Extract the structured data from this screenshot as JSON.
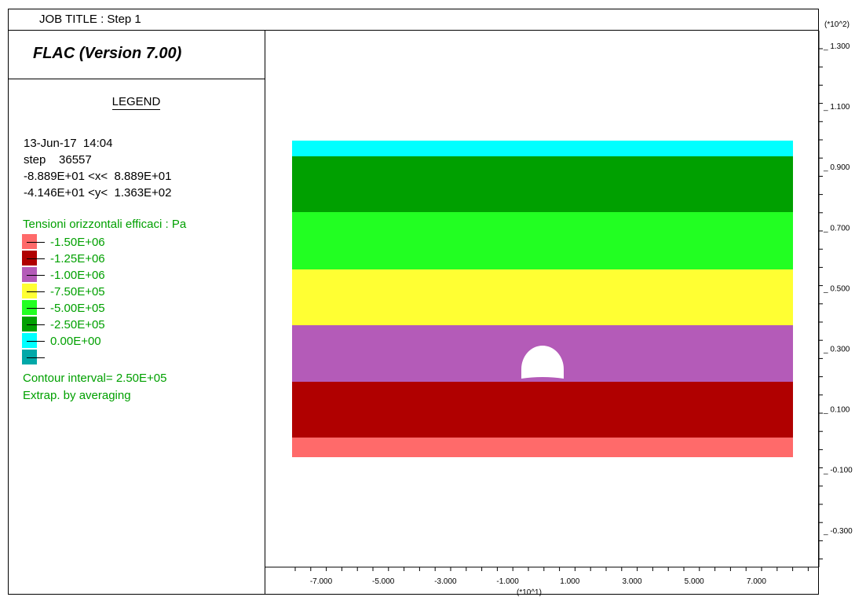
{
  "header": {
    "job_title": "JOB TITLE : Step 1",
    "version": "FLAC (Version 7.00)"
  },
  "legend": {
    "title": "LEGEND",
    "date": "13-Jun-17  14:04",
    "step": "step    36557",
    "x_range": "-8.889E+01 <x<  8.889E+01",
    "y_range": "-4.146E+01 <y<  1.363E+02",
    "contour_title": "Tensioni orizzontali efficaci : Pa",
    "contour_levels": [
      {
        "label": "-1.50E+06",
        "color": "#ff6a6a"
      },
      {
        "label": "-1.25E+06",
        "color": "#b00000"
      },
      {
        "label": "-1.00E+06",
        "color": "#b45bb8"
      },
      {
        "label": "-7.50E+05",
        "color": "#ffff33"
      },
      {
        "label": "-5.00E+05",
        "color": "#22ff22"
      },
      {
        "label": "-2.50E+05",
        "color": "#00a000"
      },
      {
        "label": "0.00E+00",
        "color": "#00ffff"
      },
      {
        "label": "",
        "color": "#00a8a8"
      }
    ],
    "contour_interval": "Contour interval=  2.50E+05",
    "extrapolation": "Extrap. by averaging"
  },
  "plot": {
    "y_multiplier": "(*10^2)",
    "x_multiplier": "(*10^1)",
    "y_ticks": [
      "1.300",
      "1.100",
      "0.900",
      "0.700",
      "0.500",
      "0.300",
      "0.100",
      "-0.100",
      "-0.300"
    ],
    "x_ticks": [
      "-7.000",
      "-5.000",
      "-3.000",
      "-1.000",
      "1.000",
      "3.000",
      "5.000",
      "7.000"
    ],
    "bands": [
      {
        "color": "#00ffff"
      },
      {
        "color": "#00a000"
      },
      {
        "color": "#22ff22"
      },
      {
        "color": "#ffff33"
      },
      {
        "color": "#b45bb8"
      },
      {
        "color": "#b00000"
      },
      {
        "color": "#ff6a6a"
      }
    ]
  }
}
